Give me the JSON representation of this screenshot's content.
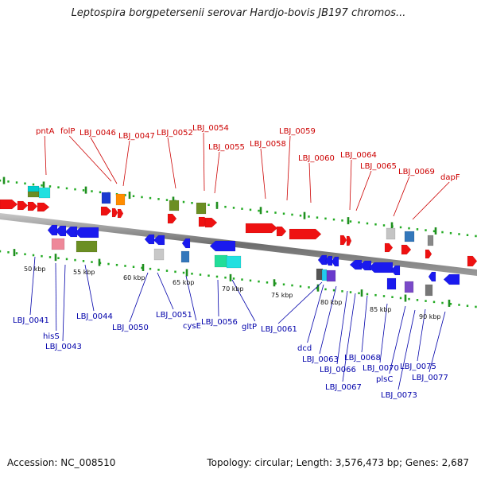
{
  "title": "Leptospira borgpetersenii serovar Hardjo-bovis JB197 chromos...",
  "footer": {
    "accession": "Accession: NC_008510",
    "stats": "Topology: circular; Length: 3,576,473 bp; Genes: 2,687"
  },
  "colors": {
    "top_label": "#cc0000",
    "bottom_label": "#0000aa",
    "dot_track": "#22aa22",
    "backbone": "#8a8a8a"
  },
  "top_labels": [
    "pntA",
    "folP",
    "LBJ_0046",
    "LBJ_0047",
    "LBJ_0052",
    "LBJ_0054",
    "LBJ_0055",
    "LBJ_0058",
    "LBJ_0059",
    "LBJ_0060",
    "LBJ_0064",
    "LBJ_0065",
    "LBJ_0069",
    "dapF"
  ],
  "bottom_labels": [
    "LBJ_0041",
    "hisS",
    "LBJ_0043",
    "LBJ_0044",
    "LBJ_0050",
    "LBJ_0051",
    "cysE",
    "LBJ_0056",
    "gltP",
    "LBJ_0061",
    "dcd",
    "LBJ_0063",
    "LBJ_0066",
    "LBJ_0067",
    "LBJ_0068",
    "LBJ_0070",
    "plsC",
    "LBJ_0073",
    "LBJ_0075",
    "LBJ_0077"
  ],
  "ticks": [
    "50 kbp",
    "55 kbp",
    "60 kbp",
    "65 kbp",
    "70 kbp",
    "75 kbp",
    "80 kbp",
    "85 kbp",
    "90 kbp"
  ]
}
